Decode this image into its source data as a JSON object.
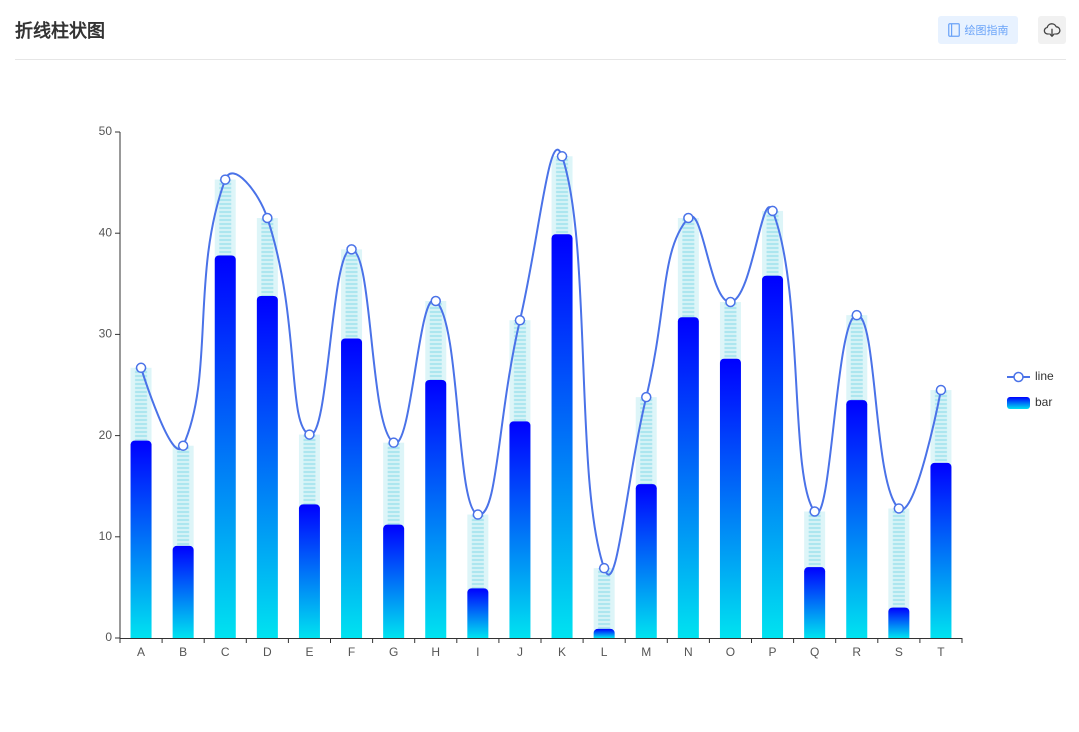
{
  "header": {
    "title": "折线柱状图",
    "guide_button_label": "绘图指南",
    "guide_icon": "notebook-icon",
    "download_icon": "cloud-download-icon"
  },
  "colors": {
    "accent": "#6aa3f8",
    "line": "#4a72e8",
    "bar_top": "#0000ff",
    "bar_bottom": "#00e3f0",
    "background_bar": "#ddf5f8",
    "stripe": "#ace6ef",
    "axis": "#333333",
    "text": "#555555"
  },
  "chart_data": {
    "type": "bar",
    "title": "",
    "xlabel": "",
    "ylabel": "",
    "categories": [
      "A",
      "B",
      "C",
      "D",
      "E",
      "F",
      "G",
      "H",
      "I",
      "J",
      "K",
      "L",
      "M",
      "N",
      "O",
      "P",
      "Q",
      "R",
      "S",
      "T"
    ],
    "series": [
      {
        "name": "line",
        "type": "line",
        "smooth": true,
        "symbol": "empty-circle",
        "values": [
          26.7,
          19.0,
          45.3,
          41.5,
          20.1,
          38.4,
          19.3,
          33.3,
          12.2,
          31.4,
          47.6,
          6.9,
          23.8,
          41.5,
          33.2,
          42.2,
          12.5,
          31.9,
          12.8,
          24.5
        ]
      },
      {
        "name": "bar",
        "type": "bar",
        "values": [
          19.5,
          9.1,
          37.8,
          33.8,
          13.2,
          29.6,
          11.2,
          25.5,
          4.9,
          21.4,
          39.9,
          0.9,
          15.2,
          31.7,
          27.6,
          35.8,
          7.0,
          23.5,
          3.0,
          17.3
        ]
      }
    ],
    "ylim": [
      0,
      50
    ],
    "yticks": [
      0,
      10,
      20,
      30,
      40,
      50
    ],
    "grid": false,
    "legend": "right"
  }
}
